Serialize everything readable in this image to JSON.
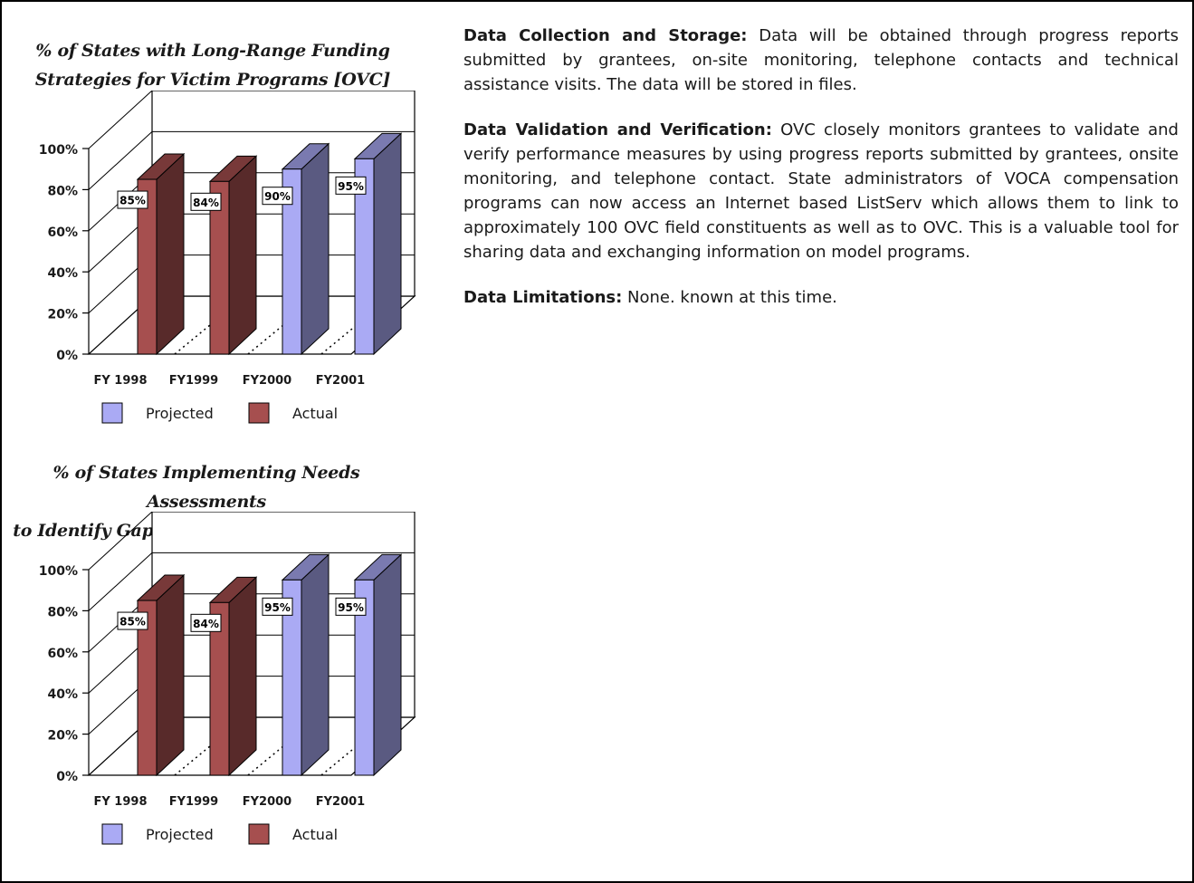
{
  "charts": [
    {
      "title_line1": "% of States with Long-Range Funding",
      "title_line2": "Strategies for Victim Programs  [OVC]"
    },
    {
      "title_line1": "% of States Implementing Needs Assessments",
      "title_line2": "to Identify Gaps in Victim Services [OVC]"
    }
  ],
  "chart_data": [
    {
      "type": "bar",
      "title": "% of States with Long-Range Funding Strategies for Victim Programs  [OVC]",
      "categories": [
        "FY 1998",
        "FY1999",
        "FY2000",
        "FY2001"
      ],
      "values": [
        85,
        84,
        90,
        95
      ],
      "value_labels": [
        "85%",
        "84%",
        "90%",
        "95%"
      ],
      "bar_series": [
        "Actual",
        "Actual",
        "Projected",
        "Projected"
      ],
      "series": [
        {
          "name": "Projected",
          "color": "#aaaaf4"
        },
        {
          "name": "Actual",
          "color": "#a64f4f"
        }
      ],
      "y_ticks": [
        "0%",
        "20%",
        "40%",
        "60%",
        "80%",
        "100%"
      ],
      "ylim": [
        0,
        100
      ],
      "legend_position": "bottom",
      "grid": true
    },
    {
      "type": "bar",
      "title": "% of States Implementing Needs Assessments to Identify Gaps in Victim Services [OVC]",
      "categories": [
        "FY 1998",
        "FY1999",
        "FY2000",
        "FY2001"
      ],
      "values": [
        85,
        84,
        95,
        95
      ],
      "value_labels": [
        "85%",
        "84%",
        "95%",
        "95%"
      ],
      "bar_series": [
        "Actual",
        "Actual",
        "Projected",
        "Projected"
      ],
      "series": [
        {
          "name": "Projected",
          "color": "#aaaaf4"
        },
        {
          "name": "Actual",
          "color": "#a64f4f"
        }
      ],
      "y_ticks": [
        "0%",
        "20%",
        "40%",
        "60%",
        "80%",
        "100%"
      ],
      "ylim": [
        0,
        100
      ],
      "legend_position": "bottom",
      "grid": true
    }
  ],
  "text": {
    "collection_label": "Data Collection and Storage:",
    "collection_body": " Data will be obtained through progress reports submitted by grantees, on-site monitoring, telephone contacts and technical assistance visits.  The data will be stored in files.",
    "validation_label": "Data Validation and Verification:",
    "validation_body": " OVC closely monitors grantees to validate and verify performance measures by using progress reports submitted by grantees, onsite monitoring, and telephone contact.  State administrators of VOCA compensation programs can now access an Internet based ListServ which allows  them to link to approximately 100 OVC field constituents as well as to OVC. This is a valuable tool for sharing data and exchanging information on model programs.",
    "limitations_label": "Data Limitations:",
    "limitations_body": " None. known at this time."
  }
}
